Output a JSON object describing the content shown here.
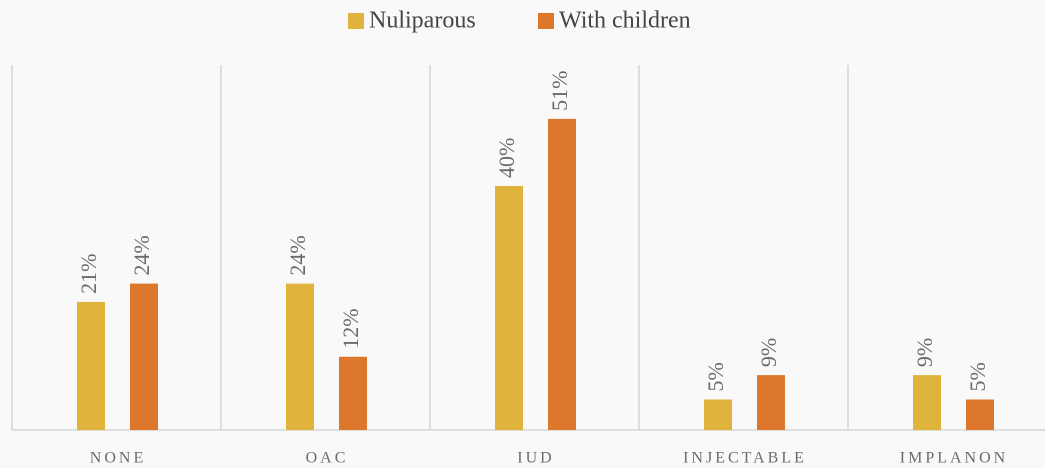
{
  "chart_data": {
    "type": "bar",
    "categories": [
      "NONE",
      "OAC",
      "IUD",
      "INJECTABLE",
      "IMPLANON"
    ],
    "series": [
      {
        "name": "Nuliparous",
        "color": "#e0b43c",
        "values": [
          21,
          24,
          40,
          5,
          9
        ],
        "value_labels": [
          "21%",
          "24%",
          "40%",
          "5%",
          "9%"
        ]
      },
      {
        "name": "With children",
        "color": "#dd772b",
        "values": [
          24,
          12,
          51,
          9,
          5
        ],
        "value_labels": [
          "24%",
          "12%",
          "51%",
          "9%",
          "5%"
        ]
      }
    ],
    "legend": "top"
  }
}
